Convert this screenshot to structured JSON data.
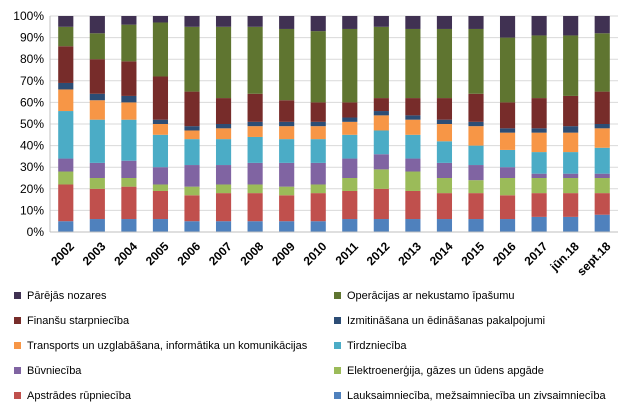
{
  "chart_data": {
    "type": "bar",
    "stacked": true,
    "normalized": true,
    "ylim": [
      0,
      100
    ],
    "yticks": [
      "0%",
      "10%",
      "20%",
      "30%",
      "40%",
      "50%",
      "60%",
      "70%",
      "80%",
      "90%",
      "100%"
    ],
    "categories": [
      "2002",
      "2003",
      "2004",
      "2005",
      "2006",
      "2007",
      "2008",
      "2009",
      "2010",
      "2011",
      "2012",
      "2013",
      "2014",
      "2015",
      "2016",
      "2017",
      "jūn.18",
      "sept.18"
    ],
    "legend_position": "bottom",
    "series": [
      {
        "name": "Lauksaimniecība, mežsaimniecība un zivsaimniecība",
        "color": "#4f81bd",
        "values": [
          5,
          6,
          6,
          6,
          5,
          5,
          5,
          5,
          5,
          6,
          6,
          6,
          6,
          6,
          6,
          7,
          7,
          8
        ]
      },
      {
        "name": "Apstrādes rūpniecība",
        "color": "#c0504d",
        "values": [
          17,
          14,
          15,
          13,
          12,
          13,
          13,
          12,
          13,
          13,
          14,
          13,
          12,
          12,
          11,
          11,
          11,
          10
        ]
      },
      {
        "name": "Elektroenerģija, gāzes un ūdens apgāde",
        "color": "#9bbb59",
        "values": [
          6,
          5,
          4,
          3,
          4,
          4,
          4,
          4,
          4,
          6,
          9,
          9,
          7,
          6,
          8,
          7,
          7,
          7
        ]
      },
      {
        "name": "Būvniecība",
        "color": "#8064a2",
        "values": [
          6,
          7,
          8,
          8,
          10,
          9,
          10,
          11,
          10,
          9,
          7,
          6,
          7,
          7,
          5,
          2,
          2,
          2
        ]
      },
      {
        "name": "Tirdzniecība",
        "color": "#4bacc6",
        "values": [
          22,
          20,
          19,
          15,
          12,
          12,
          12,
          11,
          11,
          11,
          11,
          11,
          10,
          9,
          8,
          10,
          10,
          12
        ]
      },
      {
        "name": "Transports un uzglabāšana, informātika un komunikācijas",
        "color": "#f79646",
        "values": [
          10,
          9,
          8,
          5,
          4,
          5,
          5,
          6,
          6,
          6,
          7,
          7,
          8,
          9,
          8,
          9,
          9,
          9
        ]
      },
      {
        "name": "Izmitināšana un ēdināšanas pakalpojumi",
        "color": "#2c4d75",
        "values": [
          3,
          3,
          3,
          2,
          2,
          2,
          2,
          2,
          2,
          2,
          2,
          2,
          2,
          2,
          2,
          2,
          3,
          2
        ]
      },
      {
        "name": "Finanšu starpniecība",
        "color": "#772c2a",
        "values": [
          17,
          16,
          16,
          20,
          16,
          12,
          13,
          10,
          9,
          7,
          6,
          8,
          10,
          13,
          12,
          14,
          14,
          15
        ]
      },
      {
        "name": "Operācijas ar nekustamo īpašumu",
        "color": "#5f7530",
        "values": [
          9,
          12,
          17,
          25,
          30,
          33,
          31,
          33,
          33,
          34,
          33,
          32,
          32,
          30,
          30,
          29,
          28,
          27
        ]
      },
      {
        "name": "Pārējās nozares",
        "color": "#403152",
        "values": [
          5,
          8,
          4,
          3,
          5,
          5,
          5,
          6,
          7,
          6,
          5,
          6,
          6,
          6,
          10,
          9,
          9,
          8
        ]
      }
    ],
    "legend_order": [
      "Pārējās nozares",
      "Operācijas ar nekustamo īpašumu",
      "Finanšu starpniecība",
      "Izmitināšana un ēdināšanas pakalpojumi",
      "Transports un uzglabāšana, informātika un komunikācijas",
      "Tirdzniecība",
      "Būvniecība",
      "Elektroenerģija, gāzes un ūdens apgāde",
      "Apstrādes rūpniecība",
      "Lauksaimniecība, mežsaimniecība un zivsaimniecība"
    ]
  }
}
